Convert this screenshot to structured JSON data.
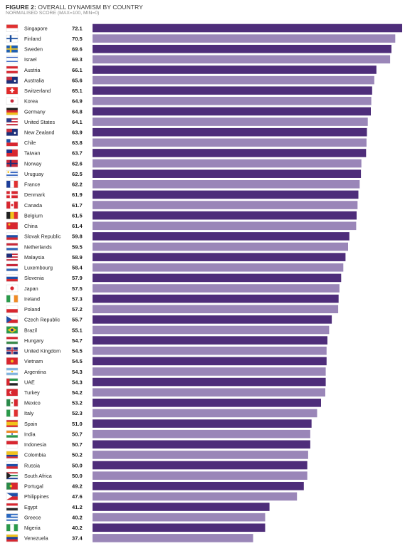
{
  "header": {
    "figure_label": "FIGURE 2:",
    "title": "OVERALL DYNAMISM BY COUNTRY",
    "subtitle": "NORMALISED SCORE (MAX=100, MIN=0)"
  },
  "colors": {
    "dark_bar": "#4e2d7a",
    "light_bar": "#9a86b8"
  },
  "chart_data": {
    "type": "bar",
    "orientation": "horizontal",
    "title": "OVERALL DYNAMISM BY COUNTRY",
    "subtitle": "NORMALISED SCORE (MAX=100, MIN=0)",
    "categories": [
      "Singapore",
      "Finland",
      "Sweden",
      "Israel",
      "Austria",
      "Australia",
      "Switzerland",
      "Korea",
      "Germany",
      "United States",
      "New Zealand",
      "Chile",
      "Taiwan",
      "Norway",
      "Uruguay",
      "France",
      "Denmark",
      "Canada",
      "Belgium",
      "China",
      "Slovak Republic",
      "Netherlands",
      "Malaysia",
      "Luxembourg",
      "Slovenia",
      "Japan",
      "Ireland",
      "Poland",
      "Czech Republic",
      "Brazil",
      "Hungary",
      "United Kingdom",
      "Vietnam",
      "Argentina",
      "UAE",
      "Turkey",
      "Mexico",
      "Italy",
      "Spain",
      "India",
      "Indonesia",
      "Colombia",
      "Russia",
      "South Africa",
      "Portugal",
      "Philippines",
      "Egypt",
      "Greece",
      "Nigeria",
      "Venezuela"
    ],
    "values": [
      72.1,
      70.5,
      69.6,
      69.3,
      66.1,
      65.6,
      65.1,
      64.9,
      64.8,
      64.1,
      63.9,
      63.8,
      63.7,
      62.6,
      62.5,
      62.2,
      61.9,
      61.7,
      61.5,
      61.4,
      59.8,
      59.5,
      58.9,
      58.4,
      57.9,
      57.5,
      57.3,
      57.2,
      55.7,
      55.1,
      54.7,
      54.5,
      54.5,
      54.3,
      54.3,
      54.2,
      53.2,
      52.3,
      51.0,
      50.7,
      50.7,
      50.2,
      50.0,
      50.0,
      49.2,
      47.6,
      41.2,
      40.2,
      40.2,
      37.4
    ],
    "value_labels": [
      "72.1",
      "70.5",
      "69.6",
      "69.3",
      "66.1",
      "65.6",
      "65.1",
      "64.9",
      "64.8",
      "64.1",
      "63.9",
      "63.8",
      "63.7",
      "62.6",
      "62.5",
      "62.2",
      "61.9",
      "61.7",
      "61.5",
      "61.4",
      "59.8",
      "59.5",
      "58.9",
      "58.4",
      "57.9",
      "57.5",
      "57.3",
      "57.2",
      "55.7",
      "55.1",
      "54.7",
      "54.5",
      "54.5",
      "54.3",
      "54.3",
      "54.2",
      "53.2",
      "52.3",
      "51.0",
      "50.7",
      "50.7",
      "50.2",
      "50.0",
      "50.0",
      "49.2",
      "47.6",
      "41.2",
      "40.2",
      "40.2",
      "37.4"
    ],
    "bar_colors": [
      "dark",
      "light",
      "dark",
      "light",
      "dark",
      "light",
      "dark",
      "light",
      "dark",
      "light",
      "dark",
      "light",
      "dark",
      "light",
      "dark",
      "light",
      "dark",
      "light",
      "dark",
      "light",
      "dark",
      "light",
      "dark",
      "light",
      "dark",
      "light",
      "dark",
      "light",
      "dark",
      "light",
      "dark",
      "light",
      "dark",
      "light",
      "dark",
      "light",
      "dark",
      "light",
      "dark",
      "light",
      "dark",
      "light",
      "dark",
      "light",
      "dark",
      "light",
      "dark",
      "light",
      "dark",
      "light"
    ],
    "xlim": [
      0,
      72.1
    ],
    "grid": false,
    "legend": "none"
  }
}
